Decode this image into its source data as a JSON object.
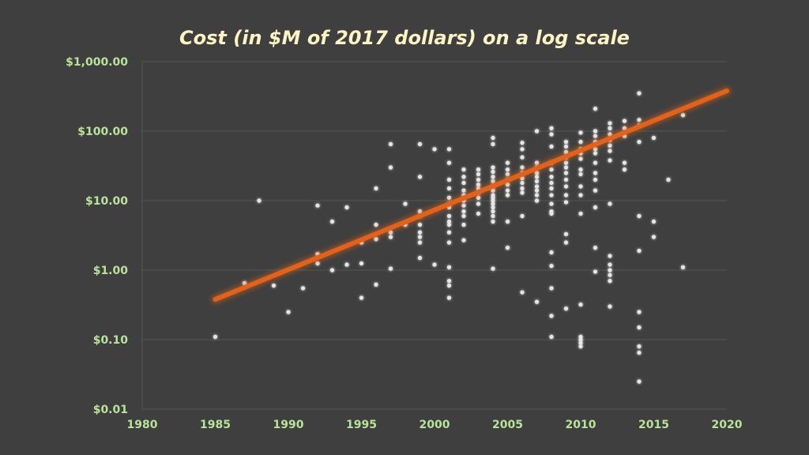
{
  "colors": {
    "background": "#3f3f3f",
    "title": "#fdf3c4",
    "tick_label": "#b9e39a",
    "grid": "#555555",
    "point": "#e6e6e6",
    "trend": "#e2621b"
  },
  "chart_data": {
    "type": "scatter",
    "title": "Cost (in $M of 2017 dollars) on a log scale",
    "xlabel": "",
    "ylabel": "",
    "xlim": [
      1980,
      2020
    ],
    "ylim": [
      0.01,
      1000
    ],
    "y_scale": "log",
    "grid": "horizontal",
    "legend": "none",
    "x_ticks": [
      "1980",
      "1985",
      "1990",
      "1995",
      "2000",
      "2005",
      "2010",
      "2015",
      "2020"
    ],
    "y_ticks": [
      "$1,000.00",
      "$100.00",
      "$10.00",
      "$1.00",
      "$0.10",
      "$0.01"
    ],
    "trend_line": {
      "x": [
        1985,
        2020
      ],
      "y": [
        0.38,
        380
      ]
    },
    "points": [
      [
        1985,
        0.11
      ],
      [
        1987,
        0.65
      ],
      [
        1988,
        10
      ],
      [
        1989,
        0.6
      ],
      [
        1990,
        0.25
      ],
      [
        1991,
        0.55
      ],
      [
        1992,
        8.5
      ],
      [
        1992,
        1.7
      ],
      [
        1992,
        1.25
      ],
      [
        1993,
        5
      ],
      [
        1993,
        1.0
      ],
      [
        1994,
        8
      ],
      [
        1994,
        1.2
      ],
      [
        1995,
        2.5
      ],
      [
        1995,
        1.25
      ],
      [
        1995,
        0.4
      ],
      [
        1996,
        15
      ],
      [
        1996,
        4.5
      ],
      [
        1996,
        2.8
      ],
      [
        1996,
        0.62
      ],
      [
        1997,
        65
      ],
      [
        1997,
        30
      ],
      [
        1997,
        3.5
      ],
      [
        1997,
        3.0
      ],
      [
        1997,
        1.05
      ],
      [
        1998,
        9
      ],
      [
        1998,
        4.5
      ],
      [
        1999,
        65
      ],
      [
        1999,
        22
      ],
      [
        1999,
        7
      ],
      [
        1999,
        6
      ],
      [
        1999,
        4.5
      ],
      [
        1999,
        3.5
      ],
      [
        1999,
        3.0
      ],
      [
        1999,
        2.5
      ],
      [
        1999,
        1.5
      ],
      [
        2000,
        55
      ],
      [
        2000,
        1.2
      ],
      [
        2001,
        55
      ],
      [
        2001,
        35
      ],
      [
        2001,
        20
      ],
      [
        2001,
        15
      ],
      [
        2001,
        11
      ],
      [
        2001,
        9
      ],
      [
        2001,
        8
      ],
      [
        2001,
        6
      ],
      [
        2001,
        5
      ],
      [
        2001,
        4.5
      ],
      [
        2001,
        3.5
      ],
      [
        2001,
        2.5
      ],
      [
        2001,
        1.1
      ],
      [
        2001,
        0.7
      ],
      [
        2001,
        0.6
      ],
      [
        2001,
        0.4
      ],
      [
        2002,
        28
      ],
      [
        2002,
        22
      ],
      [
        2002,
        18
      ],
      [
        2002,
        14
      ],
      [
        2002,
        12
      ],
      [
        2002,
        10
      ],
      [
        2002,
        8.5
      ],
      [
        2002,
        7
      ],
      [
        2002,
        6
      ],
      [
        2002,
        4.5
      ],
      [
        2002,
        2.7
      ],
      [
        2003,
        28
      ],
      [
        2003,
        24
      ],
      [
        2003,
        20
      ],
      [
        2003,
        17
      ],
      [
        2003,
        15
      ],
      [
        2003,
        13
      ],
      [
        2003,
        11
      ],
      [
        2003,
        9
      ],
      [
        2003,
        6.5
      ],
      [
        2004,
        80
      ],
      [
        2004,
        65
      ],
      [
        2004,
        30
      ],
      [
        2004,
        26
      ],
      [
        2004,
        22
      ],
      [
        2004,
        19
      ],
      [
        2004,
        16
      ],
      [
        2004,
        14
      ],
      [
        2004,
        12
      ],
      [
        2004,
        11
      ],
      [
        2004,
        10
      ],
      [
        2004,
        9
      ],
      [
        2004,
        8
      ],
      [
        2004,
        7
      ],
      [
        2004,
        6
      ],
      [
        2004,
        5
      ],
      [
        2004,
        1.05
      ],
      [
        2005,
        35
      ],
      [
        2005,
        28
      ],
      [
        2005,
        24
      ],
      [
        2005,
        20
      ],
      [
        2005,
        17
      ],
      [
        2005,
        14
      ],
      [
        2005,
        12
      ],
      [
        2005,
        5
      ],
      [
        2005,
        2.1
      ],
      [
        2006,
        68
      ],
      [
        2006,
        55
      ],
      [
        2006,
        42
      ],
      [
        2006,
        30
      ],
      [
        2006,
        25
      ],
      [
        2006,
        21
      ],
      [
        2006,
        18
      ],
      [
        2006,
        15
      ],
      [
        2006,
        13
      ],
      [
        2006,
        6
      ],
      [
        2006,
        0.48
      ],
      [
        2007,
        100
      ],
      [
        2007,
        35
      ],
      [
        2007,
        30
      ],
      [
        2007,
        25
      ],
      [
        2007,
        22
      ],
      [
        2007,
        19
      ],
      [
        2007,
        16
      ],
      [
        2007,
        14
      ],
      [
        2007,
        12
      ],
      [
        2007,
        10
      ],
      [
        2007,
        0.35
      ],
      [
        2008,
        110
      ],
      [
        2008,
        90
      ],
      [
        2008,
        60
      ],
      [
        2008,
        35
      ],
      [
        2008,
        28
      ],
      [
        2008,
        22
      ],
      [
        2008,
        18
      ],
      [
        2008,
        15
      ],
      [
        2008,
        12
      ],
      [
        2008,
        9
      ],
      [
        2008,
        7
      ],
      [
        2008,
        6.5
      ],
      [
        2008,
        1.8
      ],
      [
        2008,
        1.15
      ],
      [
        2008,
        0.55
      ],
      [
        2008,
        0.22
      ],
      [
        2008,
        0.11
      ],
      [
        2009,
        70
      ],
      [
        2009,
        60
      ],
      [
        2009,
        50
      ],
      [
        2009,
        42
      ],
      [
        2009,
        35
      ],
      [
        2009,
        30
      ],
      [
        2009,
        25
      ],
      [
        2009,
        20
      ],
      [
        2009,
        16
      ],
      [
        2009,
        12
      ],
      [
        2009,
        9.5
      ],
      [
        2009,
        3.3
      ],
      [
        2009,
        2.5
      ],
      [
        2009,
        0.28
      ],
      [
        2010,
        95
      ],
      [
        2010,
        70
      ],
      [
        2010,
        55
      ],
      [
        2010,
        48
      ],
      [
        2010,
        40
      ],
      [
        2010,
        28
      ],
      [
        2010,
        24
      ],
      [
        2010,
        16
      ],
      [
        2010,
        12
      ],
      [
        2010,
        6.5
      ],
      [
        2010,
        0.32
      ],
      [
        2010,
        0.11
      ],
      [
        2010,
        0.1
      ],
      [
        2010,
        0.09
      ],
      [
        2010,
        0.08
      ],
      [
        2011,
        210
      ],
      [
        2011,
        100
      ],
      [
        2011,
        85
      ],
      [
        2011,
        70
      ],
      [
        2011,
        55
      ],
      [
        2011,
        48
      ],
      [
        2011,
        35
      ],
      [
        2011,
        25
      ],
      [
        2011,
        20
      ],
      [
        2011,
        14
      ],
      [
        2011,
        8
      ],
      [
        2011,
        2.1
      ],
      [
        2011,
        0.95
      ],
      [
        2012,
        130
      ],
      [
        2012,
        110
      ],
      [
        2012,
        90
      ],
      [
        2012,
        75
      ],
      [
        2012,
        62
      ],
      [
        2012,
        52
      ],
      [
        2012,
        38
      ],
      [
        2012,
        9
      ],
      [
        2012,
        1.6
      ],
      [
        2012,
        1.2
      ],
      [
        2012,
        1.0
      ],
      [
        2012,
        0.85
      ],
      [
        2012,
        0.7
      ],
      [
        2012,
        0.3
      ],
      [
        2013,
        140
      ],
      [
        2013,
        110
      ],
      [
        2013,
        85
      ],
      [
        2013,
        35
      ],
      [
        2013,
        28
      ],
      [
        2014,
        350
      ],
      [
        2014,
        145
      ],
      [
        2014,
        120
      ],
      [
        2014,
        70
      ],
      [
        2014,
        6
      ],
      [
        2014,
        1.9
      ],
      [
        2014,
        0.25
      ],
      [
        2014,
        0.15
      ],
      [
        2014,
        0.08
      ],
      [
        2014,
        0.065
      ],
      [
        2014,
        0.025
      ],
      [
        2015,
        80
      ],
      [
        2015,
        5
      ],
      [
        2015,
        3
      ],
      [
        2016,
        20
      ],
      [
        2017,
        170
      ],
      [
        2017,
        1.1
      ]
    ]
  }
}
